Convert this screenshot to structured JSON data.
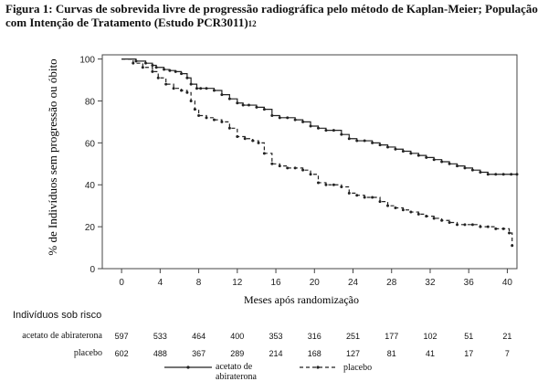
{
  "title": {
    "main": "Figura 1: Curvas de sobrevida livre de progressão radiográfica pelo método de Kaplan-Meier; População com Intenção de Tratamento (Estudo PCR3011)",
    "superscript": "12"
  },
  "chart_data": {
    "type": "line",
    "xlabel": "Meses após randomização",
    "ylabel": "% de Indivíduos sem progressão ou óbito",
    "xlim": [
      -2,
      41
    ],
    "ylim": [
      0,
      102
    ],
    "xticks": [
      0,
      4,
      8,
      12,
      16,
      20,
      24,
      28,
      32,
      36,
      40
    ],
    "yticks": [
      0,
      20,
      40,
      60,
      80,
      100
    ],
    "grid": false,
    "legend_position": "bottom",
    "series": [
      {
        "name": "acetato de abiraterona",
        "line_style": "solid",
        "color": "#222222",
        "x": [
          0,
          1.5,
          2.5,
          3.2,
          3.6,
          4.4,
          5.0,
          5.6,
          6.2,
          6.8,
          7.2,
          7.8,
          8.2,
          8.8,
          9.6,
          10.4,
          11.2,
          12.0,
          12.6,
          13.2,
          14.0,
          14.8,
          15.6,
          16.4,
          17.2,
          18.0,
          18.8,
          19.6,
          20.4,
          21.2,
          22.0,
          22.8,
          23.6,
          24.4,
          25.2,
          26.0,
          26.8,
          27.6,
          28.4,
          29.2,
          30.0,
          30.8,
          31.6,
          32.4,
          33.2,
          34.0,
          34.8,
          35.6,
          36.4,
          37.2,
          38.0,
          38.8,
          39.6,
          40.4,
          41.0
        ],
        "y": [
          100,
          99,
          98,
          97,
          96,
          95,
          94.5,
          94,
          93,
          91,
          88,
          86,
          86,
          86,
          85,
          83,
          81,
          79,
          78,
          78,
          77,
          76,
          73,
          72,
          72,
          71,
          70,
          68,
          67,
          66,
          66,
          64,
          62,
          61,
          61,
          60,
          59,
          58,
          57,
          56,
          55,
          54,
          53,
          52,
          51,
          50,
          49,
          48,
          47,
          46,
          45,
          45,
          45,
          45,
          45
        ]
      },
      {
        "name": "placebo",
        "line_style": "dashed",
        "color": "#222222",
        "x": [
          0,
          1.2,
          2.2,
          3.2,
          3.8,
          4.6,
          5.4,
          6.2,
          6.8,
          7.2,
          7.6,
          8.0,
          8.8,
          9.6,
          10.4,
          11.2,
          12.0,
          12.8,
          13.6,
          14.2,
          14.8,
          15.6,
          16.4,
          17.2,
          18.0,
          18.8,
          19.6,
          20.4,
          21.2,
          22.0,
          22.8,
          23.6,
          24.4,
          25.2,
          26.0,
          26.8,
          27.6,
          28.4,
          29.2,
          30.0,
          30.8,
          31.6,
          32.4,
          33.2,
          34.0,
          34.8,
          35.6,
          36.4,
          37.2,
          38.0,
          38.8,
          39.6,
          40.2,
          40.5
        ],
        "y": [
          100,
          98,
          96,
          94,
          91,
          88,
          86,
          85,
          84,
          80,
          76,
          73,
          72,
          71,
          70,
          67,
          63,
          62,
          61,
          60,
          55,
          50,
          49,
          48,
          48,
          47,
          45,
          41,
          40,
          40,
          39,
          36,
          35,
          34,
          34,
          32,
          30,
          29,
          28,
          27,
          26,
          25,
          24,
          23,
          22,
          21,
          21,
          21,
          20,
          20,
          19,
          19,
          17,
          11
        ]
      }
    ]
  },
  "risk_table": {
    "header": "Indivíduos sob risco",
    "times": [
      0,
      4,
      8,
      12,
      16,
      20,
      24,
      28,
      32,
      36,
      40
    ],
    "rows": [
      {
        "label": "acetato de abiraterona",
        "values": [
          "597",
          "533",
          "464",
          "400",
          "353",
          "316",
          "251",
          "177",
          "102",
          "51",
          "21"
        ]
      },
      {
        "label": "placebo",
        "values": [
          "602",
          "488",
          "367",
          "289",
          "214",
          "168",
          "127",
          "81",
          "41",
          "17",
          "7"
        ]
      }
    ]
  },
  "legend": {
    "abiraterona_line1": "acetato de",
    "abiraterona_line2": "abiraterona",
    "placebo": "placebo"
  }
}
